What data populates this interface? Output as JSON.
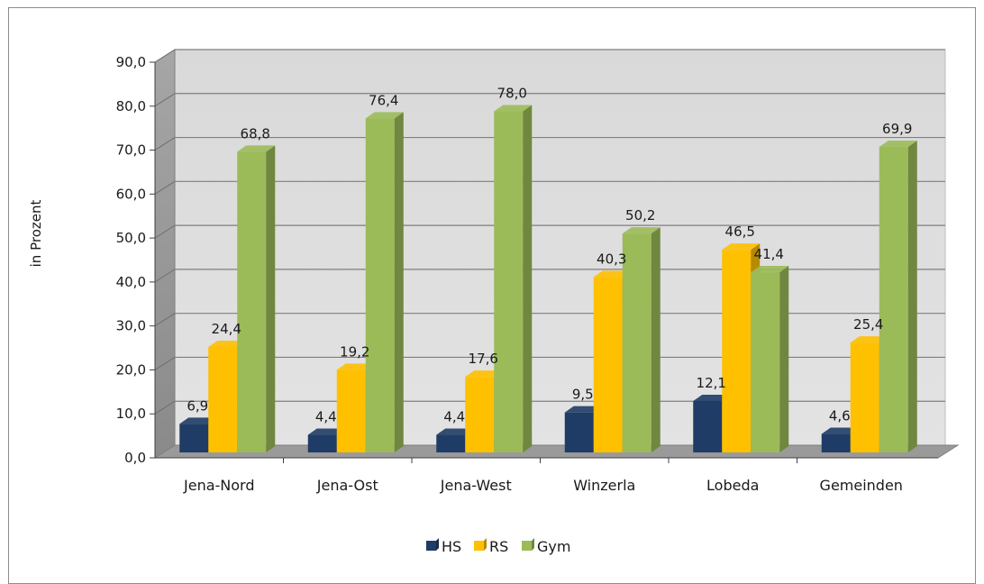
{
  "chart_data": {
    "type": "bar",
    "title": "",
    "xlabel": "",
    "ylabel": "in Prozent",
    "ylim": [
      0,
      90
    ],
    "yticks": [
      "0,0",
      "10,0",
      "20,0",
      "30,0",
      "40,0",
      "50,0",
      "60,0",
      "70,0",
      "80,0",
      "90,0"
    ],
    "categories": [
      "Jena-Nord",
      "Jena-Ost",
      "Jena-West",
      "Winzerla",
      "Lobeda",
      "Gemeinden"
    ],
    "series": [
      {
        "name": "HS",
        "color": "#1f3c66",
        "values": [
          6.9,
          4.4,
          4.4,
          9.5,
          12.1,
          4.6
        ],
        "labels": [
          "6,9",
          "4,4",
          "4,4",
          "9,5",
          "12,1",
          "4,6"
        ]
      },
      {
        "name": "RS",
        "color": "#ffc000",
        "values": [
          24.4,
          19.2,
          17.6,
          40.3,
          46.5,
          25.4
        ],
        "labels": [
          "24,4",
          "19,2",
          "17,6",
          "40,3",
          "46,5",
          "25,4"
        ]
      },
      {
        "name": "Gym",
        "color": "#9bbb59",
        "values": [
          68.8,
          76.4,
          78.0,
          50.2,
          41.4,
          69.9
        ],
        "labels": [
          "68,8",
          "76,4",
          "78,0",
          "50,2",
          "41,4",
          "69,9"
        ]
      }
    ],
    "grid": true,
    "legend_position": "bottom",
    "style": "3d-clustered-column"
  }
}
